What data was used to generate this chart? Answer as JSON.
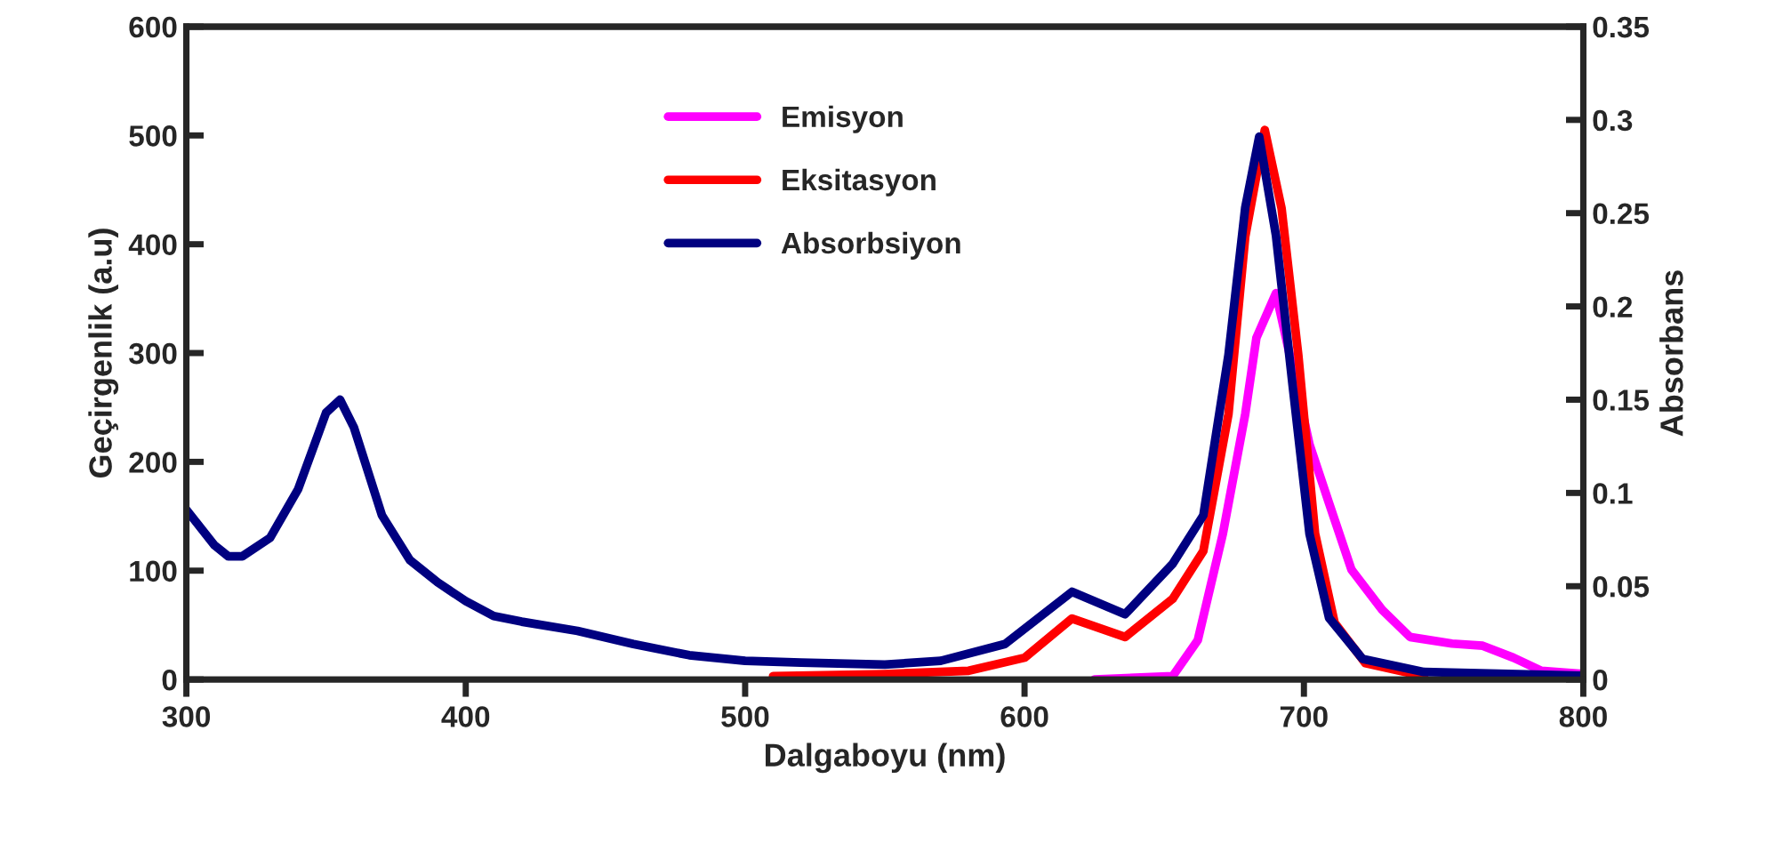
{
  "chart_data": {
    "type": "line",
    "xlabel": "Dalgaboyu (nm)",
    "ylabel": "Geçirgenlik (a.u)",
    "y2label": "Absorbans",
    "xlim": [
      300,
      800
    ],
    "xticks": [
      300,
      400,
      500,
      600,
      700,
      800
    ],
    "ylim": [
      0,
      600
    ],
    "yticks": [
      0,
      100,
      200,
      300,
      400,
      500,
      600
    ],
    "y2lim": [
      0,
      0.35
    ],
    "y2ticks": [
      0,
      0.05,
      0.1,
      0.15,
      0.2,
      0.25,
      0.3,
      0.35
    ],
    "grid": false,
    "legend": "top",
    "marker": "none",
    "line_style": "solid",
    "series": [
      {
        "name": "Emisyon",
        "color": "#ff00ff",
        "x": [
          625,
          653,
          662,
          671,
          679,
          683,
          690,
          696,
          702,
          709,
          717,
          728,
          738,
          753,
          764,
          775,
          785,
          800
        ],
        "values": [
          0,
          3,
          36,
          134,
          244,
          314,
          355,
          286,
          216,
          162,
          101,
          64,
          39,
          33,
          31,
          20,
          8,
          5
        ]
      },
      {
        "name": "Eksitasyon",
        "color": "#ff0000",
        "x": [
          510,
          550,
          580,
          600,
          617,
          636,
          653,
          664,
          673,
          679,
          686,
          692,
          698,
          704,
          711,
          722,
          743
        ],
        "values": [
          3,
          5,
          8,
          20,
          56,
          39,
          74,
          118,
          244,
          407,
          505,
          433,
          298,
          134,
          52,
          15,
          3
        ]
      },
      {
        "name": "Absorbsiyon",
        "color": "#000080",
        "axis": "y2",
        "x": [
          300,
          310,
          315,
          320,
          330,
          340,
          350,
          355,
          360,
          370,
          380,
          390,
          400,
          410,
          420,
          440,
          460,
          480,
          500,
          520,
          550,
          570,
          593,
          617,
          636,
          653,
          664,
          673,
          679,
          684,
          690,
          696,
          702,
          709,
          721,
          743,
          800
        ],
        "values": [
          0.091,
          0.072,
          0.066,
          0.066,
          0.076,
          0.102,
          0.143,
          0.15,
          0.135,
          0.088,
          0.064,
          0.052,
          0.042,
          0.034,
          0.031,
          0.026,
          0.019,
          0.013,
          0.01,
          0.009,
          0.008,
          0.01,
          0.019,
          0.047,
          0.035,
          0.062,
          0.088,
          0.174,
          0.253,
          0.291,
          0.238,
          0.157,
          0.078,
          0.033,
          0.011,
          0.004,
          0.002
        ]
      }
    ]
  }
}
